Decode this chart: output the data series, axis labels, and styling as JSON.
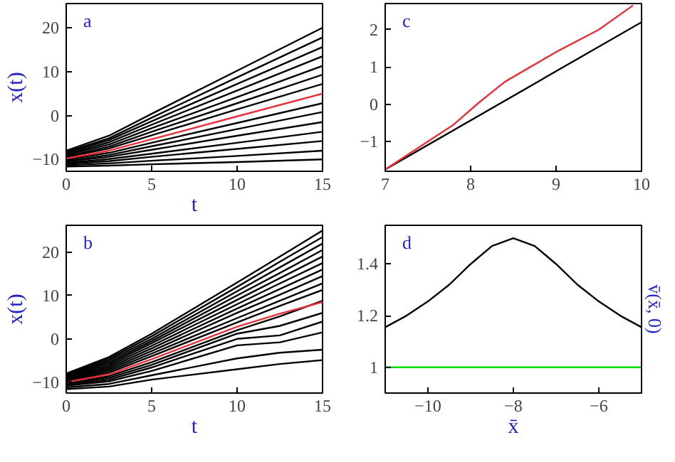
{
  "chart_data": [
    {
      "type": "line",
      "annotations": [
        "a"
      ],
      "xlabel": "t",
      "ylabel": "x(t)",
      "xlim": [
        0,
        15
      ],
      "ylim": [
        -12.7,
        25.5
      ],
      "xticks": [
        0,
        5,
        10,
        15
      ],
      "yticks": [
        -10,
        0,
        10,
        20
      ],
      "grid": false,
      "x": [
        0,
        2.5,
        5,
        10,
        15
      ],
      "series": [
        {
          "color": "#000000",
          "values": [
            -8,
            -4.6,
            0.4,
            10.2,
            20
          ]
        },
        {
          "color": "#000000",
          "values": [
            -8.3,
            -5.2,
            -0.5,
            8.7,
            17.8
          ]
        },
        {
          "color": "#000000",
          "values": [
            -8.5,
            -5.6,
            -1.3,
            7.2,
            15.6
          ]
        },
        {
          "color": "#000000",
          "values": [
            -8.8,
            -6.1,
            -2.1,
            5.7,
            13.5
          ]
        },
        {
          "color": "#000000",
          "values": [
            -9,
            -6.6,
            -2.9,
            4.2,
            11.3
          ]
        },
        {
          "color": "#000000",
          "values": [
            -9.3,
            -7.1,
            -3.7,
            2.8,
            9.3
          ]
        },
        {
          "color": "#000000",
          "values": [
            -9.5,
            -7.5,
            -4.5,
            1.4,
            7.2
          ]
        },
        {
          "color": "#000000",
          "values": [
            -10,
            -8.5,
            -6.2,
            -1.7,
            2.8
          ]
        },
        {
          "color": "#000000",
          "values": [
            -10.3,
            -9,
            -7,
            -3.1,
            0.8
          ]
        },
        {
          "color": "#000000",
          "values": [
            -10.5,
            -9.4,
            -7.8,
            -4.6,
            -1.5
          ]
        },
        {
          "color": "#000000",
          "values": [
            -10.8,
            -9.9,
            -8.7,
            -6.2,
            -3.7
          ]
        },
        {
          "color": "#000000",
          "values": [
            -11,
            -10.4,
            -9.4,
            -7.6,
            -5.8
          ]
        },
        {
          "color": "#000000",
          "values": [
            -11.3,
            -10.9,
            -10.3,
            -9.2,
            -8
          ]
        },
        {
          "color": "#000000",
          "values": [
            -11.6,
            -11.4,
            -11.1,
            -10.6,
            -10
          ]
        },
        {
          "color": "#e8303a",
          "values": [
            -9.8,
            -8,
            -5.4,
            -0.2,
            5
          ]
        }
      ]
    },
    {
      "type": "line",
      "annotations": [
        "c"
      ],
      "xlim": [
        7,
        10
      ],
      "ylim": [
        -1.8,
        2.7
      ],
      "xticks": [
        7,
        8,
        9,
        10
      ],
      "yticks": [
        -1,
        0,
        1,
        2
      ],
      "grid": false,
      "series": [
        {
          "color": "#000000",
          "x": [
            7,
            10
          ],
          "values": [
            -1.75,
            2.2
          ]
        },
        {
          "color": "#e8303a",
          "x": [
            7,
            7.5,
            7.8,
            8.1,
            8.4,
            8.7,
            9,
            9.5,
            9.9
          ],
          "values": [
            -1.75,
            -1,
            -0.55,
            0.05,
            0.6,
            1,
            1.4,
            2,
            2.65
          ]
        }
      ]
    },
    {
      "type": "line",
      "annotations": [
        "b"
      ],
      "xlabel": "t",
      "ylabel": "x(t)",
      "xlim": [
        0,
        15
      ],
      "ylim": [
        -12.5,
        26.2
      ],
      "xticks": [
        0,
        5,
        10,
        15
      ],
      "yticks": [
        -10,
        0,
        10,
        20
      ],
      "grid": false,
      "x": [
        0,
        2.5,
        5,
        10,
        12.5,
        15
      ],
      "series": [
        {
          "color": "#000000",
          "values": [
            -8,
            -4.2,
            1.2,
            13,
            19,
            25
          ]
        },
        {
          "color": "#000000",
          "values": [
            -8.2,
            -4.6,
            0.6,
            12,
            17.8,
            23.5
          ]
        },
        {
          "color": "#000000",
          "values": [
            -8.4,
            -5,
            0,
            11,
            16.5,
            22
          ]
        },
        {
          "color": "#000000",
          "values": [
            -8.6,
            -5.4,
            -0.5,
            10,
            15.2,
            20.5
          ]
        },
        {
          "color": "#000000",
          "values": [
            -8.8,
            -5.8,
            -1,
            9,
            14,
            19
          ]
        },
        {
          "color": "#000000",
          "values": [
            -9,
            -6.2,
            -1.6,
            8,
            12.8,
            17.5
          ]
        },
        {
          "color": "#000000",
          "values": [
            -9.2,
            -6.6,
            -2.2,
            7,
            11.5,
            16
          ]
        },
        {
          "color": "#000000",
          "values": [
            -9.4,
            -7,
            -2.8,
            6,
            10.2,
            14.5
          ]
        },
        {
          "color": "#000000",
          "values": [
            -9.6,
            -7.4,
            -3.4,
            4.8,
            8.8,
            12.8
          ]
        },
        {
          "color": "#000000",
          "values": [
            -9.8,
            -7.8,
            -4,
            3.8,
            7.6,
            11.3
          ]
        },
        {
          "color": "#000000",
          "values": [
            -10.2,
            -8.6,
            -5.4,
            2,
            5.2,
            8.8
          ]
        },
        {
          "color": "#000000",
          "values": [
            -10.4,
            -9,
            -6,
            1.2,
            3,
            6
          ]
        },
        {
          "color": "#000000",
          "values": [
            -10.6,
            -9.4,
            -6.6,
            0,
            0.8,
            4
          ]
        },
        {
          "color": "#000000",
          "values": [
            -10.8,
            -9.8,
            -7.4,
            -1.5,
            -0.8,
            1.5
          ]
        },
        {
          "color": "#000000",
          "values": [
            -11.2,
            -10.4,
            -8.4,
            -4.5,
            -3.2,
            -2.5
          ]
        },
        {
          "color": "#000000",
          "values": [
            -11.6,
            -11,
            -9.4,
            -7,
            -5.8,
            -4.9
          ]
        },
        {
          "color": "#e8303a",
          "values": [
            -10,
            -8.2,
            -4.7,
            2.8,
            5.8,
            8.5
          ]
        }
      ]
    },
    {
      "type": "line",
      "annotations": [
        "d"
      ],
      "xlabel": "x̄",
      "y2label": "v̄(x̄, 0)",
      "xlim": [
        -11,
        -5
      ],
      "ylim": [
        0.9,
        1.55
      ],
      "xticks": [
        -10,
        -8,
        -6
      ],
      "yticks": [
        1,
        1.2,
        1.4
      ],
      "grid": false,
      "series": [
        {
          "color": "#000000",
          "x": [
            -11,
            -10.5,
            -10,
            -9.5,
            -9,
            -8.5,
            -8,
            -7.5,
            -7,
            -6.5,
            -6,
            -5.5,
            -5
          ],
          "values": [
            1.155,
            1.2,
            1.255,
            1.32,
            1.4,
            1.47,
            1.5,
            1.47,
            1.4,
            1.32,
            1.255,
            1.2,
            1.155
          ]
        },
        {
          "color": "#00dd00",
          "x": [
            -11,
            -5
          ],
          "values": [
            1,
            1
          ]
        }
      ]
    }
  ]
}
